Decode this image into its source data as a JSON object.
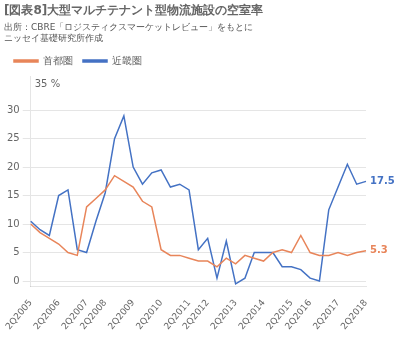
{
  "chart_data": {
    "type": "line",
    "title": "[図表8]大型マルチテナント型物流施設の空室率",
    "subtitle": [
      "出所：CBRE「ロジスティクスマーケットレビュー」をもとに",
      "ニッセイ基礎研究所作成"
    ],
    "categories": [
      "2Q2005",
      null,
      null,
      "2Q2006",
      null,
      null,
      "2Q2007",
      null,
      "2Q2008",
      null,
      null,
      "2Q2009",
      null,
      null,
      "2Q2010",
      null,
      null,
      "2Q2011",
      null,
      "2Q2012",
      null,
      null,
      "2Q2013",
      null,
      null,
      "2Q2014",
      null,
      null,
      "2Q2015",
      null,
      "2Q2016",
      null,
      null,
      "2Q2017",
      null,
      null,
      "2Q2018"
    ],
    "series": [
      {
        "name": "首都圏",
        "color": "#E8855A",
        "values": [
          10.0,
          8.5,
          7.5,
          6.5,
          5.0,
          4.5,
          13.0,
          14.5,
          16.0,
          18.5,
          17.5,
          16.5,
          14.0,
          13.0,
          5.5,
          4.5,
          4.5,
          4.0,
          3.5,
          3.5,
          2.5,
          4.0,
          3.0,
          4.5,
          4.0,
          3.5,
          5.0,
          5.5,
          5.0,
          8.0,
          5.0,
          4.5,
          4.5,
          5.0,
          4.5,
          5.0,
          5.3
        ]
      },
      {
        "name": "近畿圏",
        "color": "#4472C4",
        "values": [
          10.5,
          9.0,
          8.0,
          15.0,
          16.0,
          5.5,
          5.0,
          10.5,
          15.5,
          25.0,
          29.0,
          20.0,
          17.0,
          19.0,
          19.5,
          16.5,
          17.0,
          16.0,
          5.5,
          7.5,
          0.5,
          7.0,
          -0.5,
          0.5,
          5.0,
          5.0,
          5.0,
          2.5,
          2.5,
          2.0,
          0.5,
          0.0,
          12.5,
          16.5,
          20.5,
          17.0,
          17.5
        ]
      }
    ],
    "annotations": [
      {
        "text": "35 %"
      },
      {
        "text": "5.3",
        "x": "2Q2018",
        "y": 5.3,
        "color": "#E8855A"
      },
      {
        "text": "17.5",
        "x": "2Q2018",
        "y": 17.5,
        "color": "#4472C4"
      }
    ],
    "ylim": [
      -1,
      36
    ],
    "yticks": [
      0,
      5,
      10,
      15,
      20,
      25,
      30
    ],
    "grid": true,
    "legend": "upper left"
  }
}
